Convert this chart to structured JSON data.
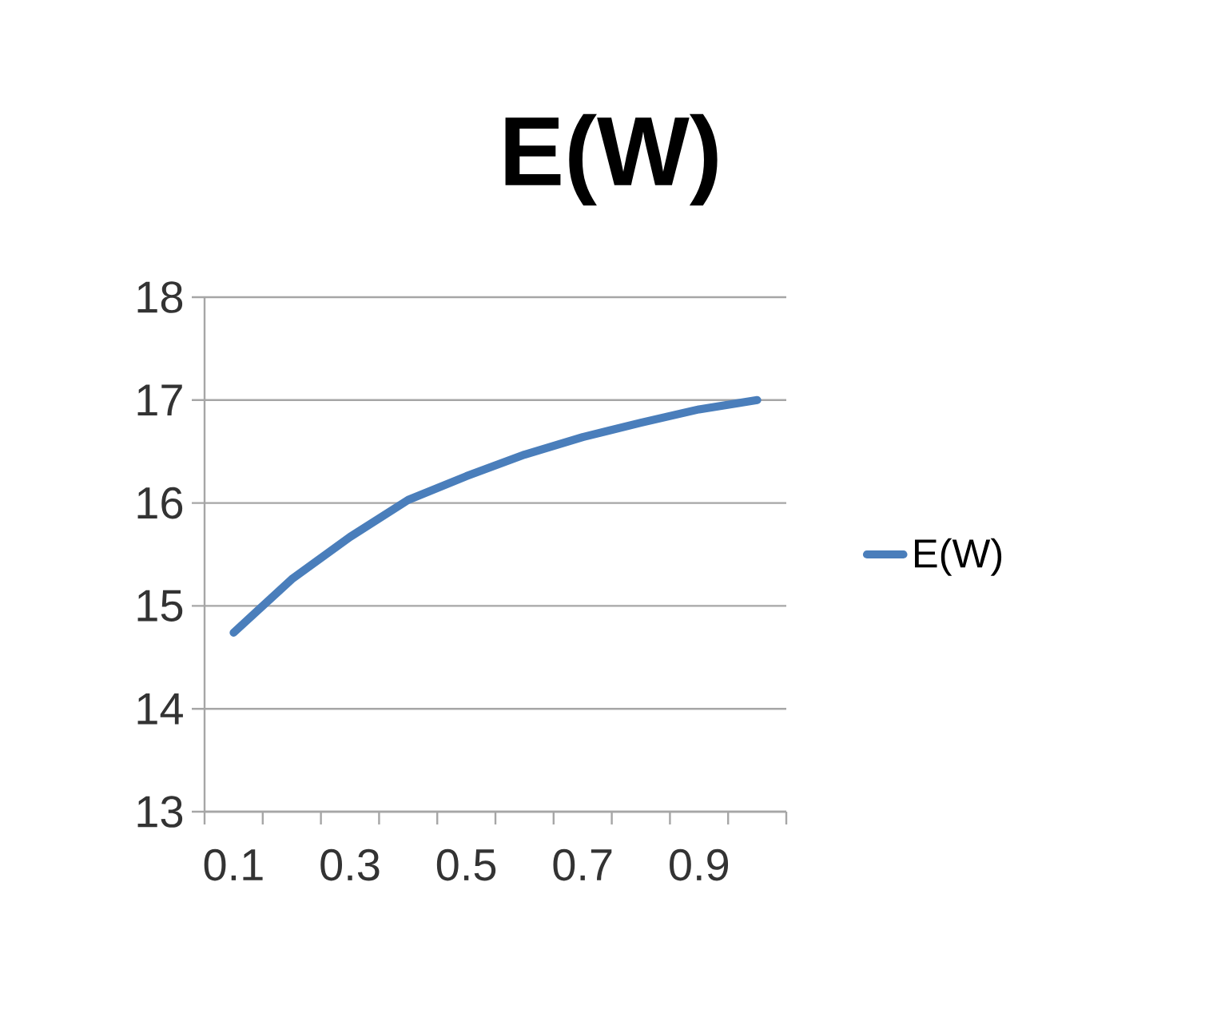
{
  "chart_data": {
    "type": "line",
    "title": "E(W)",
    "categories": [
      "0.1",
      null,
      "0.3",
      null,
      "0.5",
      null,
      "0.7",
      null,
      "0.9",
      null
    ],
    "series": [
      {
        "name": "E(W)",
        "color": "#4a7ebb",
        "values": [
          14.74,
          15.26,
          15.67,
          16.03,
          16.26,
          16.47,
          16.64,
          16.78,
          16.91,
          17.0
        ]
      }
    ],
    "ylim": [
      13,
      18
    ],
    "yticks": [
      13,
      14,
      15,
      16,
      17,
      18
    ],
    "grid": "y",
    "legend": "right"
  }
}
